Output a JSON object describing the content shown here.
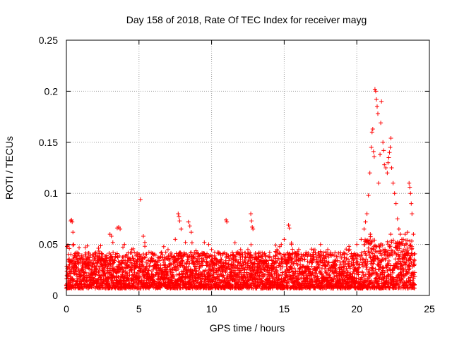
{
  "chart_data": {
    "type": "scatter",
    "title": "Day 158 of 2018, Rate Of TEC Index for receiver mayg",
    "xlabel": "GPS time / hours",
    "ylabel": "ROTI / TECUs",
    "xlim": [
      0,
      25
    ],
    "ylim": [
      0,
      0.25
    ],
    "xticks": [
      0,
      5,
      10,
      15,
      20,
      25
    ],
    "xtick_labels": [
      "0",
      "5",
      "10",
      "15",
      "20",
      "25"
    ],
    "yticks": [
      0,
      0.05,
      0.1,
      0.15,
      0.2,
      0.25
    ],
    "ytick_labels": [
      "0",
      "0.05",
      "0.1",
      "0.15",
      "0.2",
      "0.25"
    ],
    "grid": true,
    "marker": "+",
    "marker_color": "#ff0000",
    "series": [
      {
        "name": "ROTI",
        "points": [
          [
            0.05,
            0.048
          ],
          [
            0.1,
            0.049
          ],
          [
            0.2,
            0.046
          ],
          [
            0.3,
            0.073
          ],
          [
            0.35,
            0.074
          ],
          [
            0.4,
            0.072
          ],
          [
            0.45,
            0.062
          ],
          [
            0.5,
            0.05
          ],
          [
            1.3,
            0.047
          ],
          [
            1.8,
            0.04
          ],
          [
            2.5,
            0.04
          ],
          [
            3.0,
            0.06
          ],
          [
            3.1,
            0.058
          ],
          [
            3.2,
            0.052
          ],
          [
            3.5,
            0.066
          ],
          [
            3.6,
            0.067
          ],
          [
            3.7,
            0.065
          ],
          [
            4.0,
            0.05
          ],
          [
            4.5,
            0.045
          ],
          [
            5.1,
            0.094
          ],
          [
            5.3,
            0.058
          ],
          [
            5.4,
            0.052
          ],
          [
            6.0,
            0.04
          ],
          [
            6.5,
            0.038
          ],
          [
            7.0,
            0.045
          ],
          [
            7.5,
            0.055
          ],
          [
            7.7,
            0.08
          ],
          [
            7.75,
            0.077
          ],
          [
            7.8,
            0.073
          ],
          [
            7.9,
            0.065
          ],
          [
            8.2,
            0.052
          ],
          [
            8.4,
            0.072
          ],
          [
            8.5,
            0.068
          ],
          [
            8.6,
            0.062
          ],
          [
            9.0,
            0.03
          ],
          [
            9.5,
            0.052
          ],
          [
            9.8,
            0.05
          ],
          [
            10.0,
            0.045
          ],
          [
            10.5,
            0.042
          ],
          [
            11.0,
            0.074
          ],
          [
            11.05,
            0.072
          ],
          [
            11.5,
            0.04
          ],
          [
            12.0,
            0.045
          ],
          [
            12.5,
            0.045
          ],
          [
            12.7,
            0.08
          ],
          [
            12.75,
            0.073
          ],
          [
            12.8,
            0.067
          ],
          [
            12.85,
            0.065
          ],
          [
            13.0,
            0.04
          ],
          [
            13.5,
            0.038
          ],
          [
            14.0,
            0.042
          ],
          [
            14.5,
            0.045
          ],
          [
            14.8,
            0.05
          ],
          [
            15.0,
            0.055
          ],
          [
            15.3,
            0.069
          ],
          [
            15.35,
            0.066
          ],
          [
            15.5,
            0.05
          ],
          [
            16.0,
            0.045
          ],
          [
            16.5,
            0.042
          ],
          [
            17.0,
            0.042
          ],
          [
            17.5,
            0.05
          ],
          [
            18.0,
            0.045
          ],
          [
            18.5,
            0.042
          ],
          [
            19.0,
            0.04
          ],
          [
            19.5,
            0.045
          ],
          [
            20.0,
            0.05
          ],
          [
            20.3,
            0.055
          ],
          [
            20.5,
            0.065
          ],
          [
            20.6,
            0.072
          ],
          [
            20.7,
            0.08
          ],
          [
            20.8,
            0.098
          ],
          [
            20.9,
            0.12
          ],
          [
            21.0,
            0.145
          ],
          [
            21.05,
            0.16
          ],
          [
            21.1,
            0.163
          ],
          [
            21.15,
            0.141
          ],
          [
            21.2,
            0.136
          ],
          [
            21.25,
            0.202
          ],
          [
            21.3,
            0.2
          ],
          [
            21.35,
            0.192
          ],
          [
            21.4,
            0.185
          ],
          [
            21.45,
            0.178
          ],
          [
            21.5,
            0.11
          ],
          [
            21.6,
            0.138
          ],
          [
            21.65,
            0.169
          ],
          [
            21.7,
            0.19
          ],
          [
            21.8,
            0.15
          ],
          [
            21.85,
            0.142
          ],
          [
            21.9,
            0.128
          ],
          [
            22.0,
            0.125
          ],
          [
            22.1,
            0.12
          ],
          [
            22.15,
            0.13
          ],
          [
            22.2,
            0.135
          ],
          [
            22.25,
            0.14
          ],
          [
            22.3,
            0.145
          ],
          [
            22.35,
            0.154
          ],
          [
            22.4,
            0.125
          ],
          [
            22.5,
            0.11
          ],
          [
            22.6,
            0.1
          ],
          [
            22.7,
            0.09
          ],
          [
            22.8,
            0.075
          ],
          [
            22.9,
            0.065
          ],
          [
            23.0,
            0.06
          ],
          [
            23.2,
            0.055
          ],
          [
            23.4,
            0.05
          ],
          [
            23.5,
            0.062
          ],
          [
            23.6,
            0.11
          ],
          [
            23.65,
            0.106
          ],
          [
            23.7,
            0.1
          ],
          [
            23.75,
            0.09
          ],
          [
            23.8,
            0.08
          ],
          [
            23.9,
            0.06
          ]
        ]
      }
    ]
  }
}
